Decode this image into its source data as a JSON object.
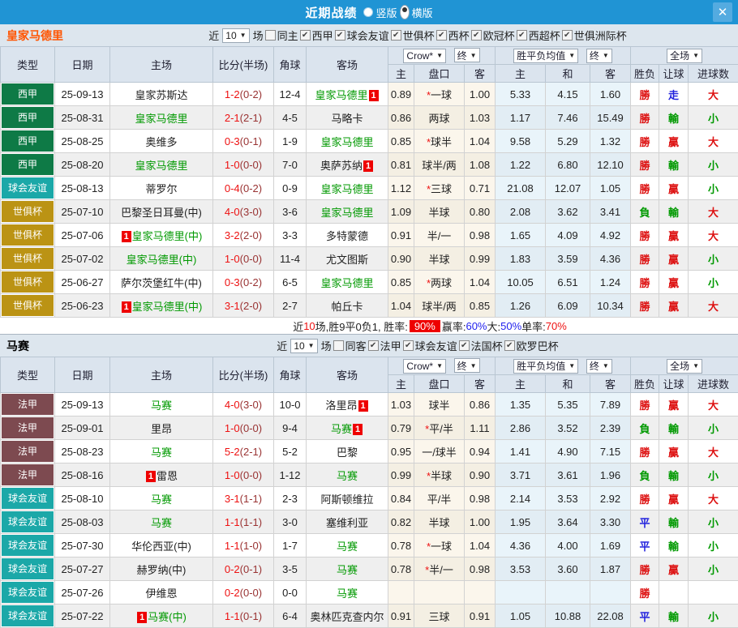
{
  "titlebar": {
    "title": "近期战绩",
    "radio_vertical": "竖版",
    "radio_horizontal": "横版",
    "close_glyph": "✕"
  },
  "colors": {
    "accent_blue": "#2094d4",
    "team_green": "#009900",
    "score_red": "#ee1111",
    "card_red": "#ee0000",
    "type_colors": {
      "西甲": "#0e7a46",
      "球会友谊": "#1ba8a8",
      "世俱杯": "#bb9314",
      "法甲": "#7d4a50"
    }
  },
  "header_labels": {
    "type": "类型",
    "date": "日期",
    "home": "主场",
    "score": "比分(半场)",
    "corner": "角球",
    "away": "客场",
    "odds_select": "Crow*",
    "final1": "终",
    "mean_select": "胜平负均值",
    "final2": "终",
    "full_select": "全场",
    "sub": [
      "主",
      "盘口",
      "客",
      "主",
      "和",
      "客",
      "胜负",
      "让球",
      "进球数"
    ]
  },
  "sections": [
    {
      "team": "皇家马德里",
      "team_color": "#ff5400",
      "filter": {
        "near": "近",
        "count": "10",
        "games": "场",
        "same": "同主",
        "leagues": [
          "西甲",
          "球会友谊",
          "世俱杯",
          "西杯",
          "欧冠杯",
          "西超杯",
          "世俱洲际杯"
        ]
      },
      "rows": [
        {
          "type": "西甲",
          "date": "25-09-13",
          "home": {
            "name": "皇家苏斯达",
            "green": false,
            "card": null
          },
          "score": "1-2",
          "half": "(0-2)",
          "corner": "12-4",
          "away": {
            "name": "皇家马德里",
            "green": true,
            "card": "after"
          },
          "o1": "0.89",
          "hcap": "*一球",
          "o2": "1.00",
          "m1": "5.33",
          "m2": "4.15",
          "m3": "1.60",
          "r1": {
            "t": "勝",
            "c": "r"
          },
          "r2": {
            "t": "走",
            "c": "b"
          },
          "r3": {
            "t": "大",
            "c": "r"
          }
        },
        {
          "type": "西甲",
          "date": "25-08-31",
          "home": {
            "name": "皇家马德里",
            "green": true,
            "card": null
          },
          "score": "2-1",
          "half": "(2-1)",
          "corner": "4-5",
          "away": {
            "name": "马略卡",
            "green": false,
            "card": null
          },
          "o1": "0.86",
          "hcap": "两球",
          "o2": "1.03",
          "m1": "1.17",
          "m2": "7.46",
          "m3": "15.49",
          "r1": {
            "t": "勝",
            "c": "r"
          },
          "r2": {
            "t": "輸",
            "c": "g"
          },
          "r3": {
            "t": "小",
            "c": "g"
          }
        },
        {
          "type": "西甲",
          "date": "25-08-25",
          "home": {
            "name": "奥维多",
            "green": false,
            "card": null
          },
          "score": "0-3",
          "half": "(0-1)",
          "corner": "1-9",
          "away": {
            "name": "皇家马德里",
            "green": true,
            "card": null
          },
          "o1": "0.85",
          "hcap": "*球半",
          "o2": "1.04",
          "m1": "9.58",
          "m2": "5.29",
          "m3": "1.32",
          "r1": {
            "t": "勝",
            "c": "r"
          },
          "r2": {
            "t": "贏",
            "c": "r"
          },
          "r3": {
            "t": "大",
            "c": "r"
          }
        },
        {
          "type": "西甲",
          "date": "25-08-20",
          "home": {
            "name": "皇家马德里",
            "green": true,
            "card": null
          },
          "score": "1-0",
          "half": "(0-0)",
          "corner": "7-0",
          "away": {
            "name": "奥萨苏纳",
            "green": false,
            "card": "after"
          },
          "o1": "0.81",
          "hcap": "球半/两",
          "o2": "1.08",
          "m1": "1.22",
          "m2": "6.80",
          "m3": "12.10",
          "r1": {
            "t": "勝",
            "c": "r"
          },
          "r2": {
            "t": "輸",
            "c": "g"
          },
          "r3": {
            "t": "小",
            "c": "g"
          }
        },
        {
          "type": "球会友谊",
          "date": "25-08-13",
          "home": {
            "name": "蒂罗尔",
            "green": false,
            "card": null
          },
          "score": "0-4",
          "half": "(0-2)",
          "corner": "0-9",
          "away": {
            "name": "皇家马德里",
            "green": true,
            "card": null
          },
          "o1": "1.12",
          "hcap": "*三球",
          "o2": "0.71",
          "m1": "21.08",
          "m2": "12.07",
          "m3": "1.05",
          "r1": {
            "t": "勝",
            "c": "r"
          },
          "r2": {
            "t": "贏",
            "c": "r"
          },
          "r3": {
            "t": "小",
            "c": "g"
          }
        },
        {
          "type": "世俱杯",
          "date": "25-07-10",
          "home": {
            "name": "巴黎圣日耳曼(中)",
            "green": false,
            "card": null
          },
          "score": "4-0",
          "half": "(3-0)",
          "corner": "3-6",
          "away": {
            "name": "皇家马德里",
            "green": true,
            "card": null
          },
          "o1": "1.09",
          "hcap": "半球",
          "o2": "0.80",
          "m1": "2.08",
          "m2": "3.62",
          "m3": "3.41",
          "r1": {
            "t": "負",
            "c": "g"
          },
          "r2": {
            "t": "輸",
            "c": "g"
          },
          "r3": {
            "t": "大",
            "c": "r"
          }
        },
        {
          "type": "世俱杯",
          "date": "25-07-06",
          "home": {
            "name": "皇家马德里(中)",
            "green": true,
            "card": "before"
          },
          "score": "3-2",
          "half": "(2-0)",
          "corner": "3-3",
          "away": {
            "name": "多特蒙德",
            "green": false,
            "card": null
          },
          "o1": "0.91",
          "hcap": "半/一",
          "o2": "0.98",
          "m1": "1.65",
          "m2": "4.09",
          "m3": "4.92",
          "r1": {
            "t": "勝",
            "c": "r"
          },
          "r2": {
            "t": "贏",
            "c": "r"
          },
          "r3": {
            "t": "大",
            "c": "r"
          }
        },
        {
          "type": "世俱杯",
          "date": "25-07-02",
          "home": {
            "name": "皇家马德里(中)",
            "green": true,
            "card": null
          },
          "score": "1-0",
          "half": "(0-0)",
          "corner": "11-4",
          "away": {
            "name": "尤文图斯",
            "green": false,
            "card": null
          },
          "o1": "0.90",
          "hcap": "半球",
          "o2": "0.99",
          "m1": "1.83",
          "m2": "3.59",
          "m3": "4.36",
          "r1": {
            "t": "勝",
            "c": "r"
          },
          "r2": {
            "t": "贏",
            "c": "r"
          },
          "r3": {
            "t": "小",
            "c": "g"
          }
        },
        {
          "type": "世俱杯",
          "date": "25-06-27",
          "home": {
            "name": "萨尔茨堡红牛(中)",
            "green": false,
            "card": null
          },
          "score": "0-3",
          "half": "(0-2)",
          "corner": "6-5",
          "away": {
            "name": "皇家马德里",
            "green": true,
            "card": null
          },
          "o1": "0.85",
          "hcap": "*两球",
          "o2": "1.04",
          "m1": "10.05",
          "m2": "6.51",
          "m3": "1.24",
          "r1": {
            "t": "勝",
            "c": "r"
          },
          "r2": {
            "t": "贏",
            "c": "r"
          },
          "r3": {
            "t": "小",
            "c": "g"
          }
        },
        {
          "type": "世俱杯",
          "date": "25-06-23",
          "home": {
            "name": "皇家马德里(中)",
            "green": true,
            "card": "before"
          },
          "score": "3-1",
          "half": "(2-0)",
          "corner": "2-7",
          "away": {
            "name": "帕丘卡",
            "green": false,
            "card": null
          },
          "o1": "1.04",
          "hcap": "球半/两",
          "o2": "0.85",
          "m1": "1.26",
          "m2": "6.09",
          "m3": "10.34",
          "r1": {
            "t": "勝",
            "c": "r"
          },
          "r2": {
            "t": "贏",
            "c": "r"
          },
          "r3": {
            "t": "大",
            "c": "r"
          }
        }
      ],
      "summary": [
        {
          "t": "近",
          "c": "k"
        },
        {
          "t": "10",
          "c": "r"
        },
        {
          "t": "场,胜9平0负1, 胜率:",
          "c": "k"
        },
        {
          "t": "90%",
          "c": "w"
        },
        {
          "t": " 赢率:",
          "c": "k"
        },
        {
          "t": "60%",
          "c": "b"
        },
        {
          "t": " 大:",
          "c": "k"
        },
        {
          "t": "50%",
          "c": "b"
        },
        {
          "t": " 单率:",
          "c": "k"
        },
        {
          "t": "70%",
          "c": "r"
        }
      ]
    },
    {
      "team": "马赛",
      "team_color": "#000000",
      "filter": {
        "near": "近",
        "count": "10",
        "games": "场",
        "same": "同客",
        "leagues": [
          "法甲",
          "球会友谊",
          "法国杯",
          "欧罗巴杯"
        ]
      },
      "rows": [
        {
          "type": "法甲",
          "date": "25-09-13",
          "home": {
            "name": "马赛",
            "green": true,
            "card": null
          },
          "score": "4-0",
          "half": "(3-0)",
          "corner": "10-0",
          "away": {
            "name": "洛里昂",
            "green": false,
            "card": "after"
          },
          "o1": "1.03",
          "hcap": "球半",
          "o2": "0.86",
          "m1": "1.35",
          "m2": "5.35",
          "m3": "7.89",
          "r1": {
            "t": "勝",
            "c": "r"
          },
          "r2": {
            "t": "贏",
            "c": "r"
          },
          "r3": {
            "t": "大",
            "c": "r"
          }
        },
        {
          "type": "法甲",
          "date": "25-09-01",
          "home": {
            "name": "里昂",
            "green": false,
            "card": null
          },
          "score": "1-0",
          "half": "(0-0)",
          "corner": "9-4",
          "away": {
            "name": "马赛",
            "green": true,
            "card": "after"
          },
          "o1": "0.79",
          "hcap": "*平/半",
          "o2": "1.11",
          "m1": "2.86",
          "m2": "3.52",
          "m3": "2.39",
          "r1": {
            "t": "負",
            "c": "g"
          },
          "r2": {
            "t": "輸",
            "c": "g"
          },
          "r3": {
            "t": "小",
            "c": "g"
          }
        },
        {
          "type": "法甲",
          "date": "25-08-23",
          "home": {
            "name": "马赛",
            "green": true,
            "card": null
          },
          "score": "5-2",
          "half": "(2-1)",
          "corner": "5-2",
          "away": {
            "name": "巴黎",
            "green": false,
            "card": null
          },
          "o1": "0.95",
          "hcap": "一/球半",
          "o2": "0.94",
          "m1": "1.41",
          "m2": "4.90",
          "m3": "7.15",
          "r1": {
            "t": "勝",
            "c": "r"
          },
          "r2": {
            "t": "贏",
            "c": "r"
          },
          "r3": {
            "t": "大",
            "c": "r"
          }
        },
        {
          "type": "法甲",
          "date": "25-08-16",
          "home": {
            "name": "雷恩",
            "green": false,
            "card": "before"
          },
          "score": "1-0",
          "half": "(0-0)",
          "corner": "1-12",
          "away": {
            "name": "马赛",
            "green": true,
            "card": null
          },
          "o1": "0.99",
          "hcap": "*半球",
          "o2": "0.90",
          "m1": "3.71",
          "m2": "3.61",
          "m3": "1.96",
          "r1": {
            "t": "負",
            "c": "g"
          },
          "r2": {
            "t": "輸",
            "c": "g"
          },
          "r3": {
            "t": "小",
            "c": "g"
          }
        },
        {
          "type": "球会友谊",
          "date": "25-08-10",
          "home": {
            "name": "马赛",
            "green": true,
            "card": null
          },
          "score": "3-1",
          "half": "(1-1)",
          "corner": "2-3",
          "away": {
            "name": "阿斯顿维拉",
            "green": false,
            "card": null
          },
          "o1": "0.84",
          "hcap": "平/半",
          "o2": "0.98",
          "m1": "2.14",
          "m2": "3.53",
          "m3": "2.92",
          "r1": {
            "t": "勝",
            "c": "r"
          },
          "r2": {
            "t": "贏",
            "c": "r"
          },
          "r3": {
            "t": "大",
            "c": "r"
          }
        },
        {
          "type": "球会友谊",
          "date": "25-08-03",
          "home": {
            "name": "马赛",
            "green": true,
            "card": null
          },
          "score": "1-1",
          "half": "(1-1)",
          "corner": "3-0",
          "away": {
            "name": "塞维利亚",
            "green": false,
            "card": null
          },
          "o1": "0.82",
          "hcap": "半球",
          "o2": "1.00",
          "m1": "1.95",
          "m2": "3.64",
          "m3": "3.30",
          "r1": {
            "t": "平",
            "c": "b"
          },
          "r2": {
            "t": "輸",
            "c": "g"
          },
          "r3": {
            "t": "小",
            "c": "g"
          }
        },
        {
          "type": "球会友谊",
          "date": "25-07-30",
          "home": {
            "name": "华伦西亚(中)",
            "green": false,
            "card": null
          },
          "score": "1-1",
          "half": "(1-0)",
          "corner": "1-7",
          "away": {
            "name": "马赛",
            "green": true,
            "card": null
          },
          "o1": "0.78",
          "hcap": "*一球",
          "o2": "1.04",
          "m1": "4.36",
          "m2": "4.00",
          "m3": "1.69",
          "r1": {
            "t": "平",
            "c": "b"
          },
          "r2": {
            "t": "輸",
            "c": "g"
          },
          "r3": {
            "t": "小",
            "c": "g"
          }
        },
        {
          "type": "球会友谊",
          "date": "25-07-27",
          "home": {
            "name": "赫罗纳(中)",
            "green": false,
            "card": null
          },
          "score": "0-2",
          "half": "(0-1)",
          "corner": "3-5",
          "away": {
            "name": "马赛",
            "green": true,
            "card": null
          },
          "o1": "0.78",
          "hcap": "*半/一",
          "o2": "0.98",
          "m1": "3.53",
          "m2": "3.60",
          "m3": "1.87",
          "r1": {
            "t": "勝",
            "c": "r"
          },
          "r2": {
            "t": "贏",
            "c": "r"
          },
          "r3": {
            "t": "小",
            "c": "g"
          }
        },
        {
          "type": "球会友谊",
          "date": "25-07-26",
          "home": {
            "name": "伊维恩",
            "green": false,
            "card": null
          },
          "score": "0-2",
          "half": "(0-0)",
          "corner": "0-0",
          "away": {
            "name": "马赛",
            "green": true,
            "card": null
          },
          "o1": "",
          "hcap": "",
          "o2": "",
          "m1": "",
          "m2": "",
          "m3": "",
          "r1": {
            "t": "勝",
            "c": "r"
          },
          "r2": {
            "t": "",
            "c": "r"
          },
          "r3": {
            "t": "",
            "c": "r"
          }
        },
        {
          "type": "球会友谊",
          "date": "25-07-22",
          "home": {
            "name": "马赛(中)",
            "green": true,
            "card": "before"
          },
          "score": "1-1",
          "half": "(0-1)",
          "corner": "6-4",
          "away": {
            "name": "奥林匹克查内尔",
            "green": false,
            "card": null
          },
          "o1": "0.91",
          "hcap": "三球",
          "o2": "0.91",
          "m1": "1.05",
          "m2": "10.88",
          "m3": "22.08",
          "r1": {
            "t": "平",
            "c": "b"
          },
          "r2": {
            "t": "輸",
            "c": "g"
          },
          "r3": {
            "t": "小",
            "c": "g"
          }
        }
      ],
      "summary": null
    }
  ]
}
